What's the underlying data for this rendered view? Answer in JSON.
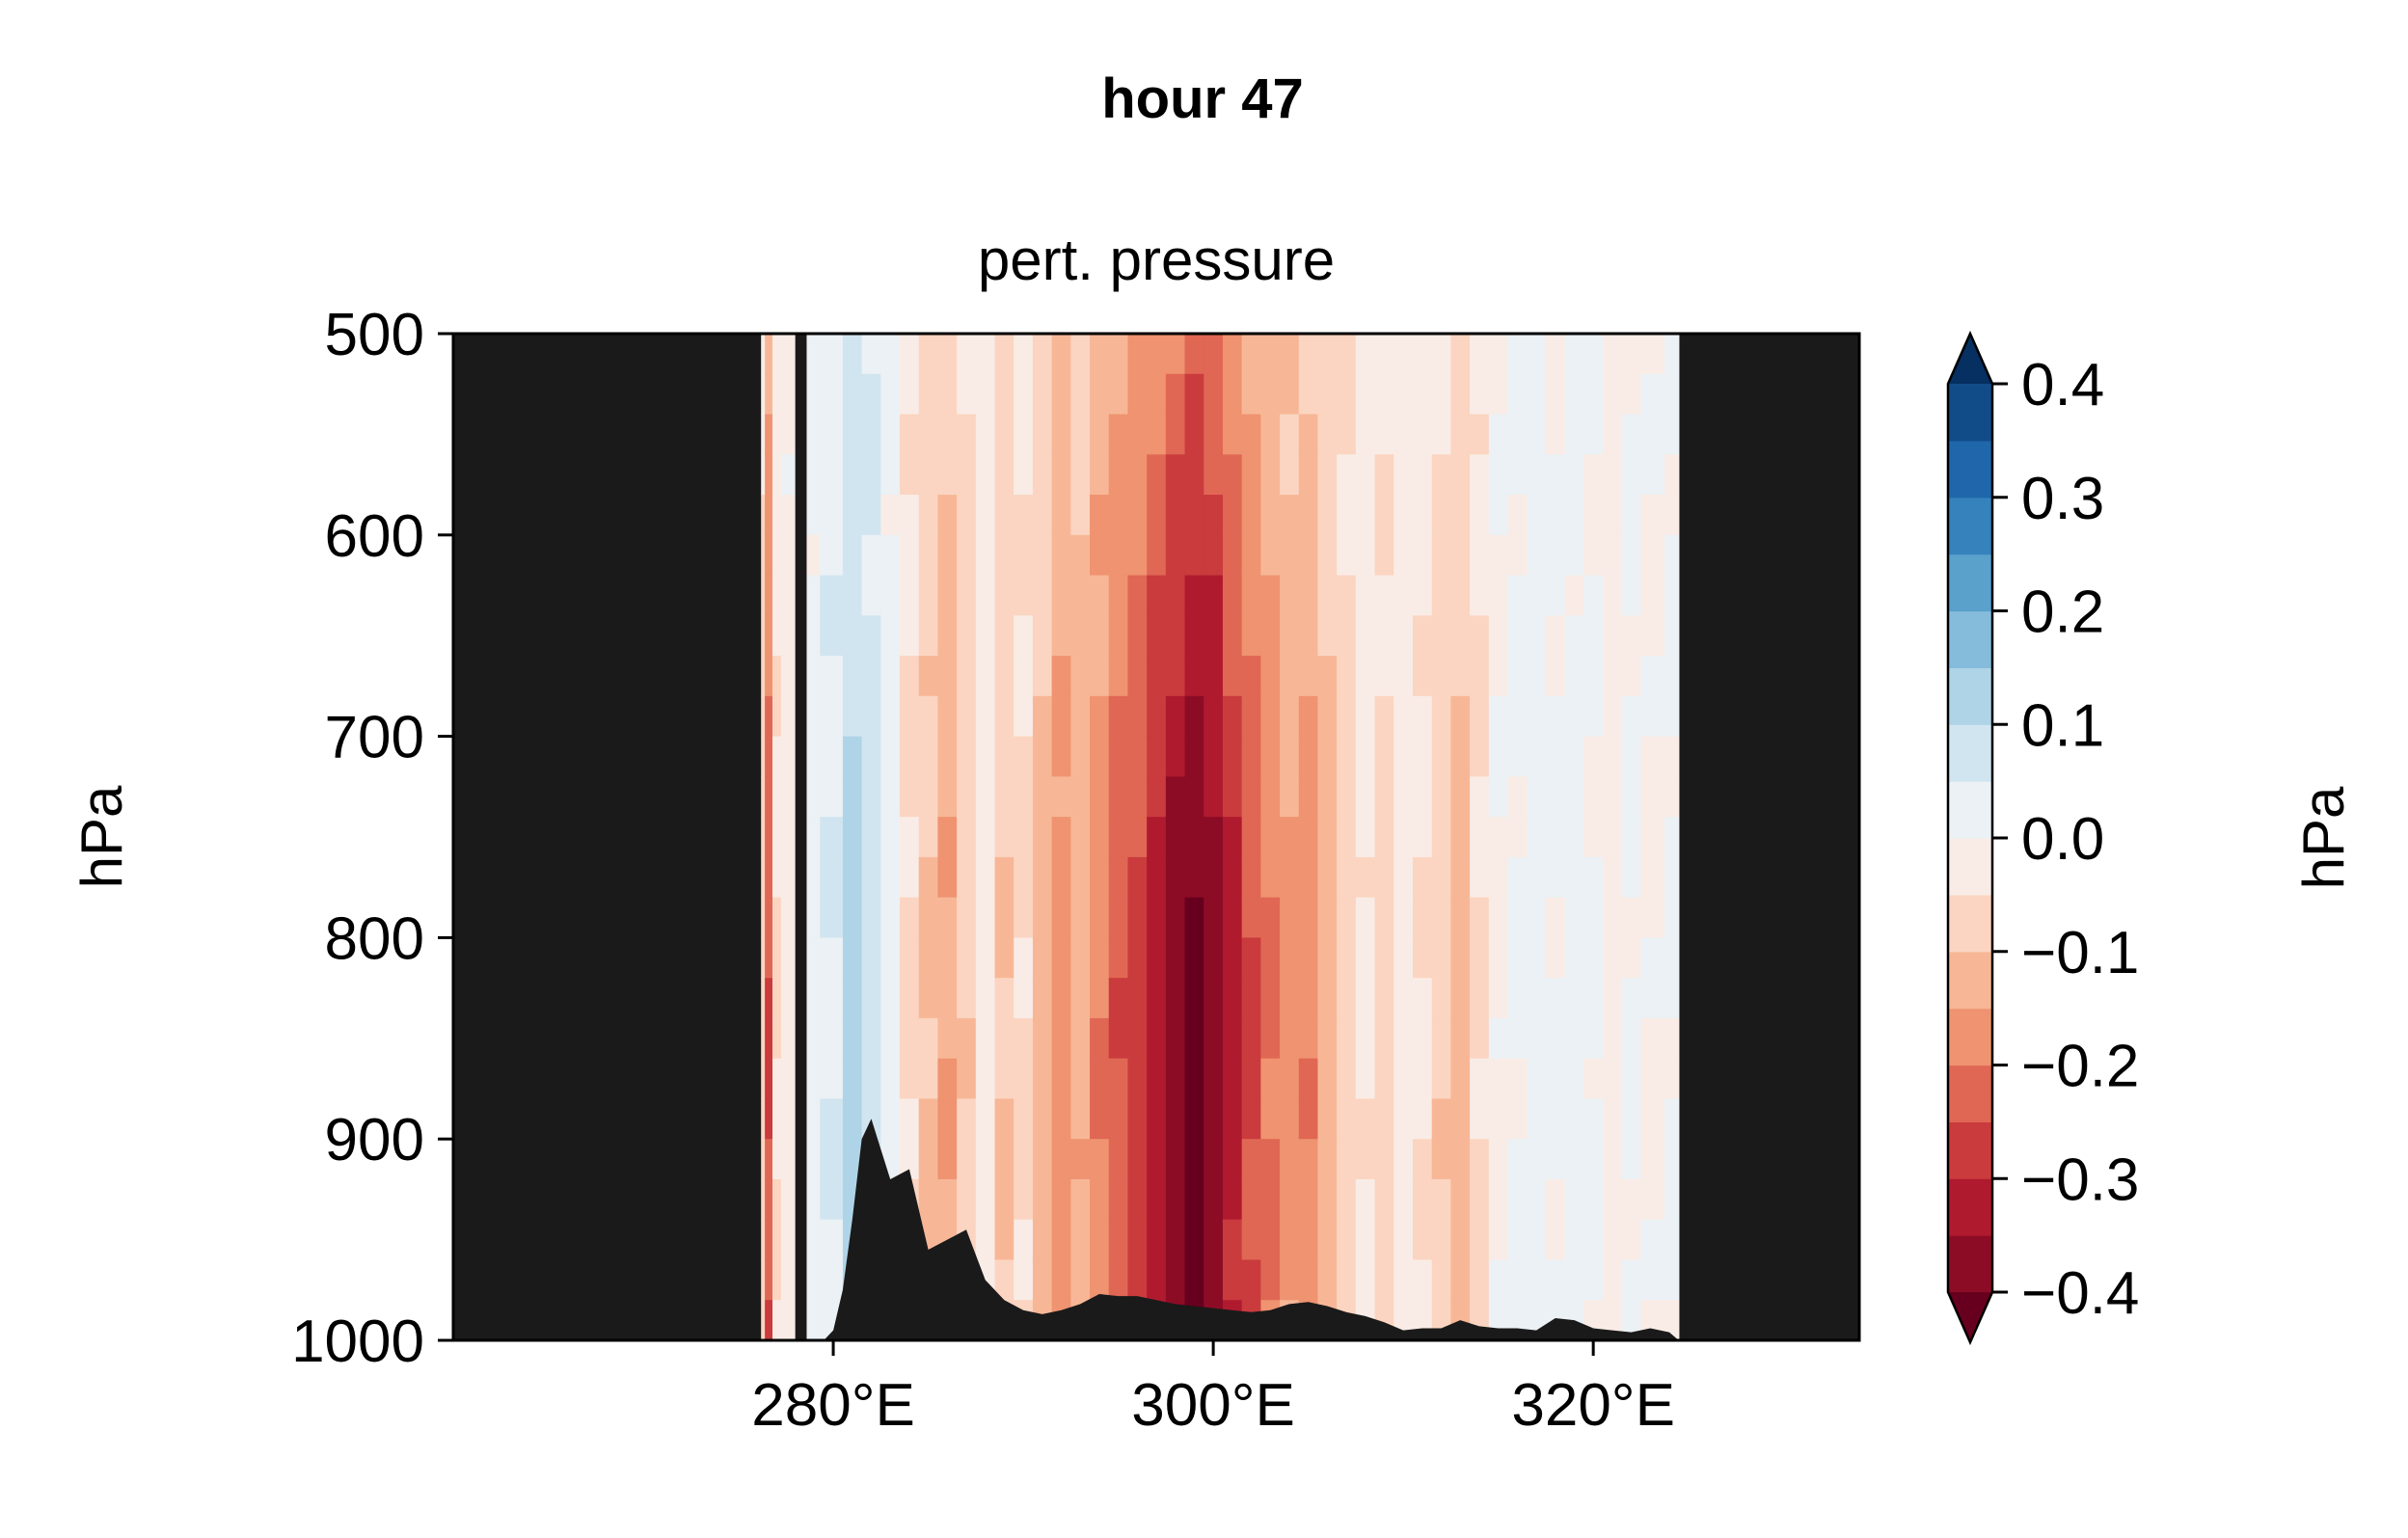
{
  "chart_data": {
    "type": "heatmap",
    "suptitle": "hour 47",
    "title": "pert. pressure",
    "ylabel": "hPa",
    "xlim": [
      260,
      334
    ],
    "ylim": [
      1000,
      500
    ],
    "y_inverted": true,
    "x_ticks": [
      {
        "value": 280,
        "label": "280°E"
      },
      {
        "value": 300,
        "label": "300°E"
      },
      {
        "value": 320,
        "label": "320°E"
      }
    ],
    "y_ticks": [
      {
        "value": 500,
        "label": "500"
      },
      {
        "value": 600,
        "label": "600"
      },
      {
        "value": 700,
        "label": "700"
      },
      {
        "value": 800,
        "label": "800"
      },
      {
        "value": 900,
        "label": "900"
      },
      {
        "value": 1000,
        "label": "1000"
      }
    ],
    "missing_value_color": "#1a1a1a",
    "data_extent_lon": [
      276.2,
      324.5
    ],
    "masked_strip_lon": [
      278.0,
      278.6
    ],
    "pressure_field": {
      "description_units": "hPa",
      "lon_columns": [
        {
          "lon": 276.2,
          "value": -0.08
        },
        {
          "lon": 276.6,
          "value": -0.25
        },
        {
          "lon": 277.0,
          "value": -0.05
        },
        {
          "lon": 277.5,
          "value": -0.02
        },
        {
          "lon": 278.6,
          "value": 0.02
        },
        {
          "lon": 280.0,
          "value": 0.05
        },
        {
          "lon": 281.0,
          "value": 0.12
        },
        {
          "lon": 282.0,
          "value": 0.08
        },
        {
          "lon": 283.0,
          "value": 0.02
        },
        {
          "lon": 284.0,
          "value": -0.06
        },
        {
          "lon": 285.0,
          "value": -0.11
        },
        {
          "lon": 286.0,
          "value": -0.15
        },
        {
          "lon": 287.0,
          "value": -0.09
        },
        {
          "lon": 288.0,
          "value": -0.03
        },
        {
          "lon": 289.0,
          "value": -0.1
        },
        {
          "lon": 290.0,
          "value": -0.06
        },
        {
          "lon": 291.0,
          "value": -0.12
        },
        {
          "lon": 292.0,
          "value": -0.18
        },
        {
          "lon": 293.0,
          "value": -0.14
        },
        {
          "lon": 294.0,
          "value": -0.2
        },
        {
          "lon": 295.0,
          "value": -0.24
        },
        {
          "lon": 296.0,
          "value": -0.27
        },
        {
          "lon": 297.0,
          "value": -0.33
        },
        {
          "lon": 298.0,
          "value": -0.38
        },
        {
          "lon": 299.0,
          "value": -0.42
        },
        {
          "lon": 300.0,
          "value": -0.39
        },
        {
          "lon": 301.0,
          "value": -0.32
        },
        {
          "lon": 302.0,
          "value": -0.26
        },
        {
          "lon": 303.0,
          "value": -0.21
        },
        {
          "lon": 304.0,
          "value": -0.17
        },
        {
          "lon": 305.0,
          "value": -0.19
        },
        {
          "lon": 306.0,
          "value": -0.13
        },
        {
          "lon": 307.0,
          "value": -0.08
        },
        {
          "lon": 308.0,
          "value": -0.04
        },
        {
          "lon": 309.0,
          "value": -0.07
        },
        {
          "lon": 310.0,
          "value": -0.03
        },
        {
          "lon": 311.0,
          "value": -0.05
        },
        {
          "lon": 312.0,
          "value": -0.09
        },
        {
          "lon": 313.0,
          "value": -0.12
        },
        {
          "lon": 314.0,
          "value": -0.06
        },
        {
          "lon": 315.0,
          "value": -0.01
        },
        {
          "lon": 316.0,
          "value": 0.01
        },
        {
          "lon": 317.0,
          "value": 0.03
        },
        {
          "lon": 318.0,
          "value": 0.01
        },
        {
          "lon": 319.0,
          "value": 0.02
        },
        {
          "lon": 320.0,
          "value": 0.01
        },
        {
          "lon": 321.0,
          "value": -0.02
        },
        {
          "lon": 322.0,
          "value": 0.01
        },
        {
          "lon": 323.0,
          "value": -0.01
        },
        {
          "lon": 324.5,
          "value": 0.01
        }
      ],
      "vertical_profile": [
        {
          "p": 500,
          "factor": 0.55
        },
        {
          "p": 600,
          "factor": 0.7
        },
        {
          "p": 700,
          "factor": 0.85
        },
        {
          "p": 800,
          "factor": 1.0
        },
        {
          "p": 900,
          "factor": 1.0
        },
        {
          "p": 1000,
          "factor": 0.95
        }
      ]
    },
    "terrain_profile": [
      [
        279.5,
        1000
      ],
      [
        280.0,
        995
      ],
      [
        280.5,
        975
      ],
      [
        281.0,
        940
      ],
      [
        281.5,
        900
      ],
      [
        282.0,
        890
      ],
      [
        282.5,
        905
      ],
      [
        283.0,
        920
      ],
      [
        284.0,
        915
      ],
      [
        285.0,
        955
      ],
      [
        286.0,
        950
      ],
      [
        287.0,
        945
      ],
      [
        288.0,
        970
      ],
      [
        289.0,
        980
      ],
      [
        290.0,
        985
      ],
      [
        291.0,
        987
      ],
      [
        292.0,
        985
      ],
      [
        293.0,
        982
      ],
      [
        294.0,
        977
      ],
      [
        295.0,
        978
      ],
      [
        296.0,
        978
      ],
      [
        297.0,
        980
      ],
      [
        298.0,
        982
      ],
      [
        299.0,
        983
      ],
      [
        300.0,
        984
      ],
      [
        301.0,
        985
      ],
      [
        302.0,
        986
      ],
      [
        303.0,
        985
      ],
      [
        304.0,
        982
      ],
      [
        305.0,
        981
      ],
      [
        306.0,
        983
      ],
      [
        307.0,
        986
      ],
      [
        308.0,
        988
      ],
      [
        309.0,
        991
      ],
      [
        310.0,
        995
      ],
      [
        311.0,
        994
      ],
      [
        312.0,
        994
      ],
      [
        313.0,
        990
      ],
      [
        314.0,
        993
      ],
      [
        315.0,
        994
      ],
      [
        316.0,
        994
      ],
      [
        317.0,
        995
      ],
      [
        318.0,
        989
      ],
      [
        319.0,
        990
      ],
      [
        320.0,
        994
      ],
      [
        321.0,
        995
      ],
      [
        322.0,
        996
      ],
      [
        323.0,
        994
      ],
      [
        324.0,
        996
      ],
      [
        324.5,
        1000
      ]
    ],
    "colorbar": {
      "label": "hPa",
      "extend": "both",
      "levels": [
        -0.4,
        -0.35,
        -0.3,
        -0.25,
        -0.2,
        -0.15,
        -0.1,
        -0.05,
        0.0,
        0.05,
        0.1,
        0.15,
        0.2,
        0.25,
        0.3,
        0.35,
        0.4
      ],
      "colors": [
        "#8d0c25",
        "#b01a2e",
        "#ca3b3d",
        "#e06754",
        "#ef9370",
        "#f7b797",
        "#fbd5c1",
        "#f9ece6",
        "#ebf1f4",
        "#d1e5f0",
        "#afd4e7",
        "#85bcdb",
        "#5aa1cc",
        "#3582bc",
        "#1f66aa",
        "#114c88"
      ],
      "under_color": "#67001f",
      "over_color": "#053061",
      "ticks": [
        {
          "value": 0.4,
          "label": "0.4"
        },
        {
          "value": 0.3,
          "label": "0.3"
        },
        {
          "value": 0.2,
          "label": "0.2"
        },
        {
          "value": 0.1,
          "label": "0.1"
        },
        {
          "value": 0.0,
          "label": "0.0"
        },
        {
          "value": -0.1,
          "label": "−0.1"
        },
        {
          "value": -0.2,
          "label": "−0.2"
        },
        {
          "value": -0.3,
          "label": "−0.3"
        },
        {
          "value": -0.4,
          "label": "−0.4"
        }
      ]
    }
  }
}
